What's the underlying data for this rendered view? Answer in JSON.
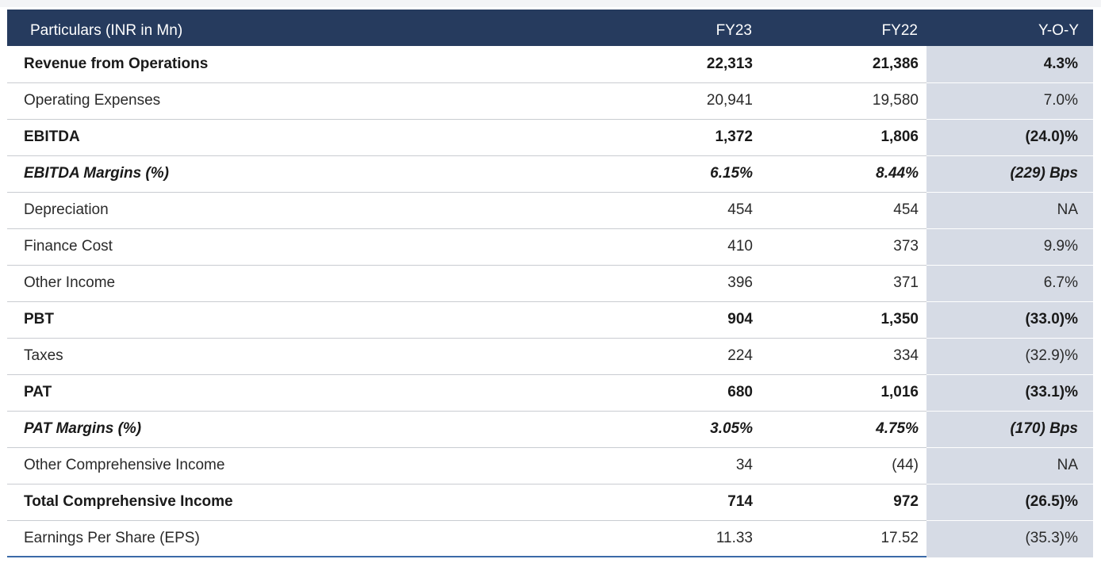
{
  "table": {
    "headers": [
      "Particulars (INR in Mn)",
      "FY23",
      "FY22",
      "Y-O-Y"
    ],
    "rows": [
      {
        "label": "Revenue from Operations",
        "fy23": "22,313",
        "fy22": "21,386",
        "yoy": "4.3%",
        "style": "bold"
      },
      {
        "label": "Operating Expenses",
        "fy23": "20,941",
        "fy22": "19,580",
        "yoy": "7.0%",
        "style": "normal"
      },
      {
        "label": "EBITDA",
        "fy23": "1,372",
        "fy22": "1,806",
        "yoy": "(24.0)%",
        "style": "bold"
      },
      {
        "label": "EBITDA Margins (%)",
        "fy23": "6.15%",
        "fy22": "8.44%",
        "yoy": "(229) Bps",
        "style": "italic"
      },
      {
        "label": "Depreciation",
        "fy23": "454",
        "fy22": "454",
        "yoy": "NA",
        "style": "normal"
      },
      {
        "label": "Finance Cost",
        "fy23": "410",
        "fy22": "373",
        "yoy": "9.9%",
        "style": "normal"
      },
      {
        "label": "Other Income",
        "fy23": "396",
        "fy22": "371",
        "yoy": "6.7%",
        "style": "normal"
      },
      {
        "label": "PBT",
        "fy23": "904",
        "fy22": "1,350",
        "yoy": "(33.0)%",
        "style": "bold"
      },
      {
        "label": "Taxes",
        "fy23": "224",
        "fy22": "334",
        "yoy": "(32.9)%",
        "style": "normal"
      },
      {
        "label": "PAT",
        "fy23": "680",
        "fy22": "1,016",
        "yoy": "(33.1)%",
        "style": "bold"
      },
      {
        "label": "PAT Margins (%)",
        "fy23": "3.05%",
        "fy22": "4.75%",
        "yoy": "(170) Bps",
        "style": "italic"
      },
      {
        "label": "Other Comprehensive Income",
        "fy23": "34",
        "fy22": "(44)",
        "yoy": "NA",
        "style": "normal"
      },
      {
        "label": "Total Comprehensive Income",
        "fy23": "714",
        "fy22": "972",
        "yoy": "(26.5)%",
        "style": "bold"
      },
      {
        "label": "Earnings Per Share (EPS)",
        "fy23": "11.33",
        "fy22": "17.52",
        "yoy": "(35.3)%",
        "style": "normal"
      }
    ]
  },
  "colors": {
    "header_bg": "#263b5e",
    "yoy_bg": "#d6dbe5",
    "row_border": "#c9ccd1"
  }
}
